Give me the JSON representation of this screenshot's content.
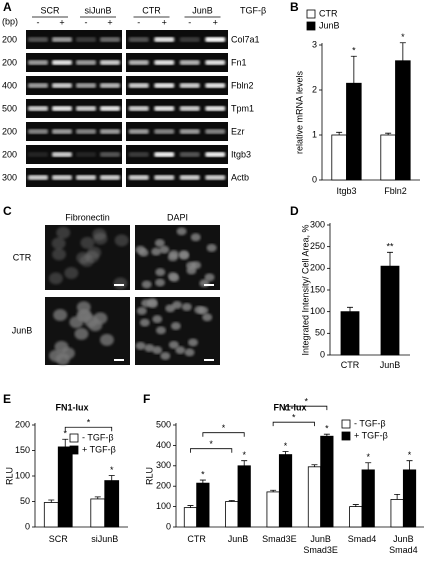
{
  "gel": {
    "panel": "A",
    "size_unit": "(bp)",
    "groups": [
      "SCR",
      "siJunB",
      "CTR",
      "JunB"
    ],
    "treatment": "TGF-β",
    "signs": [
      "-",
      "+"
    ],
    "genes": [
      "Col7a1",
      "Fn1",
      "Fbln2",
      "Tpm1",
      "Ezr",
      "Itgb3",
      "Actb"
    ],
    "sizes": [
      200,
      200,
      400,
      500,
      200,
      200,
      300
    ]
  },
  "microscopy": {
    "panel": "C",
    "stains": [
      "Fibronectin",
      "DAPI"
    ],
    "conditions": [
      "CTR",
      "JunB"
    ]
  },
  "chart_data": [
    {
      "type": "bar",
      "panel": "B",
      "ylabel": "relative mRNA levels",
      "categories": [
        [
          "Itgb3"
        ],
        [
          "Fbln2"
        ]
      ],
      "series": [
        {
          "name": "CTR",
          "color": "#ffffff",
          "values": [
            1,
            1
          ],
          "errors": [
            0.06,
            0.04
          ],
          "marks": [
            null,
            null
          ]
        },
        {
          "name": "JunB",
          "color": "#000000",
          "values": [
            2.15,
            2.65
          ],
          "errors": [
            0.6,
            0.4
          ],
          "marks": [
            "*",
            "*"
          ]
        }
      ],
      "ylim": [
        0,
        3
      ],
      "yticks": [
        0,
        1,
        2,
        3
      ]
    },
    {
      "type": "bar",
      "panel": "D",
      "ylabel": "Integrated Intensity/ Cell Area, %",
      "categories": [
        [
          "CTR"
        ],
        [
          "JunB"
        ]
      ],
      "color": "#000000",
      "values": [
        100,
        205
      ],
      "errors": [
        10,
        32
      ],
      "marks": [
        null,
        "**"
      ],
      "ylim": [
        0,
        300
      ],
      "yticks": [
        0,
        50,
        100,
        150,
        200,
        250,
        300
      ]
    },
    {
      "type": "bar",
      "panel": "E",
      "title": "FN1-lux",
      "ylabel": "RLU",
      "categories": [
        [
          "SCR"
        ],
        [
          "siJunB"
        ]
      ],
      "series": [
        {
          "name": "- TGF-β",
          "color": "#ffffff",
          "values": [
            48,
            55
          ],
          "errors": [
            5,
            4
          ],
          "marks": [
            null,
            null
          ]
        },
        {
          "name": "+ TGF-β",
          "color": "#000000",
          "values": [
            157,
            91
          ],
          "errors": [
            15,
            10
          ],
          "marks": [
            "*",
            "*"
          ]
        }
      ],
      "ylim": [
        0,
        200
      ],
      "yticks": [
        0,
        50,
        100,
        150,
        200
      ],
      "brackets": [
        {
          "categories": [
            0,
            1
          ],
          "series": [
            1,
            1
          ],
          "label": "*"
        }
      ]
    },
    {
      "type": "bar",
      "panel": "F",
      "title": "FN1-lux",
      "ylabel": "RLU",
      "categories": [
        [
          "CTR"
        ],
        [
          "JunB"
        ],
        [
          "Smad3E"
        ],
        [
          "JunB",
          "Smad3E"
        ],
        [
          "Smad4"
        ],
        [
          "JunB",
          "Smad4"
        ]
      ],
      "series": [
        {
          "name": "- TGF-β",
          "color": "#ffffff",
          "values": [
            95,
            125,
            172,
            295,
            100,
            135
          ],
          "errors": [
            10,
            5,
            8,
            10,
            10,
            25
          ],
          "marks": [
            null,
            null,
            null,
            null,
            null,
            null
          ]
        },
        {
          "name": "+ TGF-β",
          "color": "#000000",
          "values": [
            215,
            300,
            355,
            445,
            280,
            280
          ],
          "errors": [
            15,
            25,
            15,
            10,
            35,
            45
          ],
          "marks": [
            "*",
            "*",
            "*",
            "*",
            "*",
            "*"
          ]
        }
      ],
      "ylim": [
        0,
        500
      ],
      "yticks": [
        0,
        100,
        200,
        300,
        400,
        500
      ],
      "brackets": [
        {
          "categories": [
            0,
            1
          ],
          "series": [
            0,
            0
          ],
          "label": "*"
        },
        {
          "categories": [
            0,
            1
          ],
          "series": [
            1,
            1
          ],
          "label": "*"
        },
        {
          "categories": [
            2,
            3
          ],
          "series": [
            0,
            0
          ],
          "label": "*"
        },
        {
          "categories": [
            2,
            3
          ],
          "series": [
            1,
            1
          ],
          "label": "*"
        }
      ]
    }
  ]
}
